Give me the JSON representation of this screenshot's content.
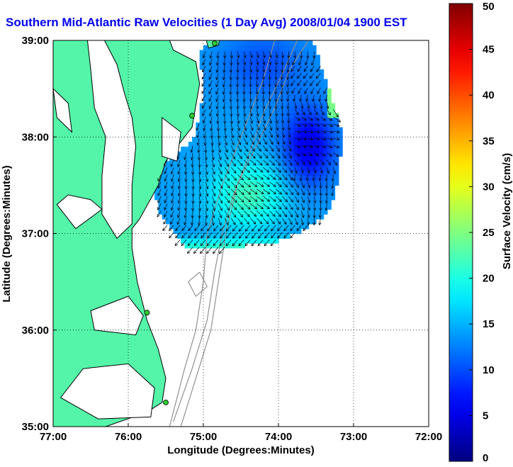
{
  "title": "Southern Mid-Atlantic Raw Velocities (1 Day Avg) 2008/01/04 1900 EST",
  "colors": {
    "land": "#54f5a8",
    "coast": "#000000",
    "grid": "#000000",
    "title": "#0000ee",
    "station": "#2ecc2e"
  },
  "map": {
    "xlabel": "Longitude (Degrees:Minutes)",
    "ylabel": "Latitude (Degrees:Minutes)",
    "lon_range": [
      -77,
      -72
    ],
    "lat_range": [
      35,
      39
    ],
    "x_ticks": [
      "77:00",
      "76:00",
      "75:00",
      "74:00",
      "73:00",
      "72:00"
    ],
    "y_ticks": [
      "35:00",
      "36:00",
      "37:00",
      "38:00",
      "39:00"
    ],
    "grid": "dotted",
    "station_icons": [
      "station-dot-icon",
      "station-dot-icon",
      "station-dot-icon",
      "station-dot-icon"
    ]
  },
  "colorbar": {
    "label": "Surface Velocity (cm/s)",
    "min": 0,
    "max": 50,
    "ticks": [
      "0",
      "5",
      "10",
      "15",
      "20",
      "25",
      "30",
      "35",
      "40",
      "45",
      "50"
    ],
    "colormap": "jet"
  },
  "chart_data": {
    "type": "heatmap",
    "title": "Southern Mid-Atlantic Raw Velocities (1 Day Avg) 2008/01/04 1900 EST",
    "xlabel": "Longitude (Degrees:Minutes)",
    "ylabel": "Latitude (Degrees:Minutes)",
    "xlim": [
      -77,
      -72
    ],
    "ylim": [
      35,
      39
    ],
    "colorbar_label": "Surface Velocity (cm/s)",
    "colorbar_range": [
      0,
      50
    ],
    "stations": [
      {
        "lon": -74.85,
        "lat": 38.97
      },
      {
        "lon": -75.15,
        "lat": 38.22
      },
      {
        "lon": -75.75,
        "lat": 36.18
      },
      {
        "lon": -75.5,
        "lat": 35.25
      }
    ]
  }
}
